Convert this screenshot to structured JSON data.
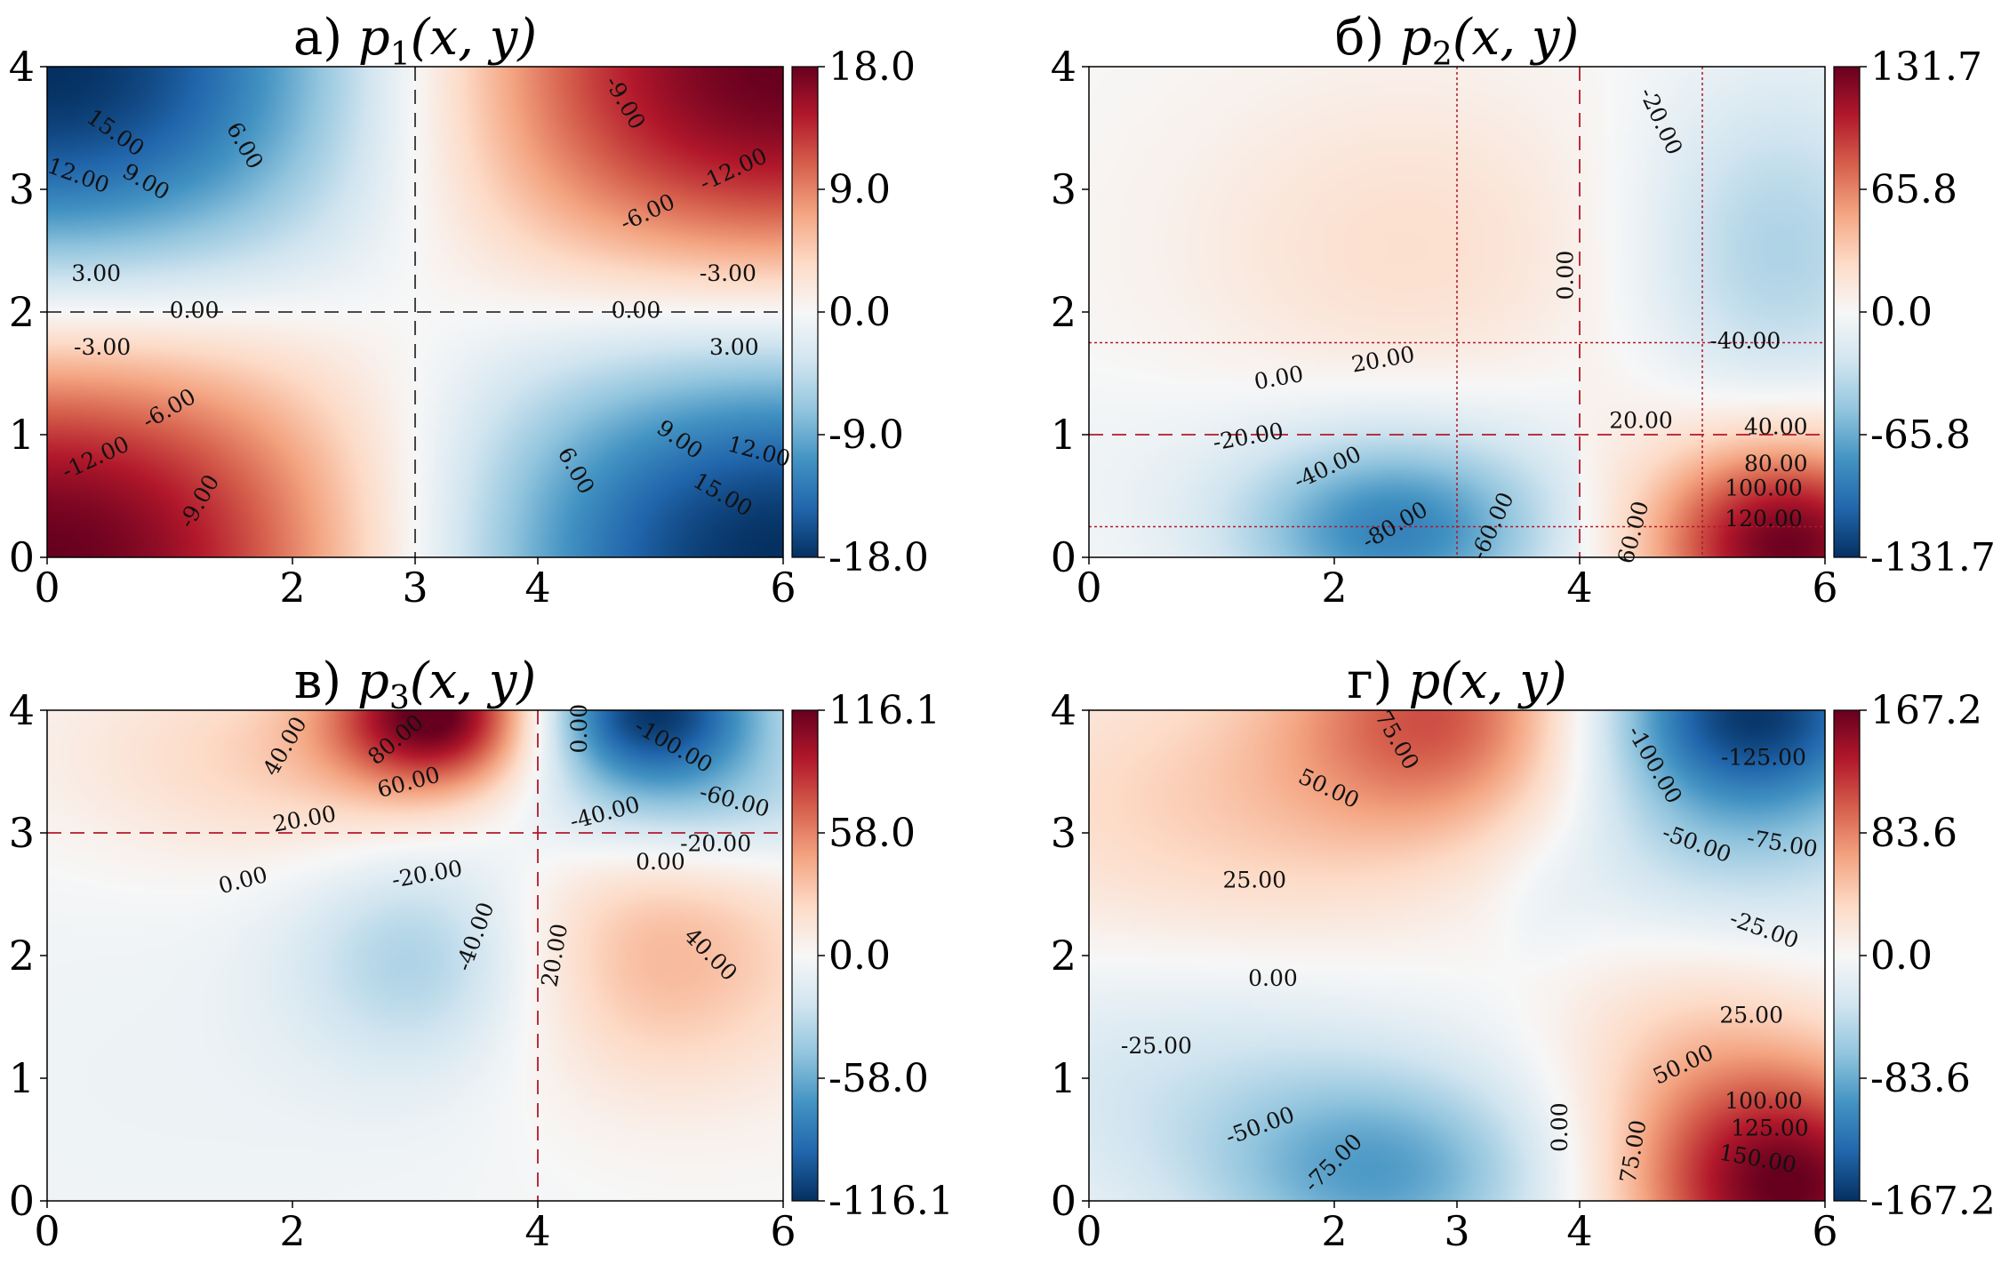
{
  "chart_data": [
    {
      "type": "heatmap",
      "prefix": "а)",
      "func": "p",
      "sub": "1",
      "args": "(x, y)",
      "xlim": [
        0,
        6
      ],
      "ylim": [
        0,
        4
      ],
      "xticks": [
        0,
        2,
        3,
        4,
        6
      ],
      "yticks": [
        0,
        1,
        2,
        3,
        4
      ],
      "colorbar": {
        "min": -18.0,
        "max": 18.0,
        "ticks": [
          "18.0",
          "9.0",
          "0.0",
          "-9.0",
          "-18.0"
        ]
      },
      "colormap": "RdBu_r",
      "dashed_lines": [
        {
          "orient": "v",
          "at": 3
        },
        {
          "orient": "h",
          "at": 2
        }
      ],
      "dotted_lines": [],
      "contour_labels": [
        {
          "text": "15.00",
          "x": 0.55,
          "y": 3.45,
          "angle": -35
        },
        {
          "text": "12.00",
          "x": 0.25,
          "y": 3.1,
          "angle": -20
        },
        {
          "text": "9.00",
          "x": 0.8,
          "y": 3.05,
          "angle": -30
        },
        {
          "text": "6.00",
          "x": 1.6,
          "y": 3.35,
          "angle": -60
        },
        {
          "text": "3.00",
          "x": 0.4,
          "y": 2.3,
          "angle": 0
        },
        {
          "text": "0.00",
          "x": 1.2,
          "y": 2.0,
          "angle": 0
        },
        {
          "text": "0.00",
          "x": 4.8,
          "y": 2.0,
          "angle": 0
        },
        {
          "text": "-9.00",
          "x": 4.7,
          "y": 3.7,
          "angle": -60
        },
        {
          "text": "-12.00",
          "x": 5.6,
          "y": 3.15,
          "angle": 25
        },
        {
          "text": "-6.00",
          "x": 4.9,
          "y": 2.8,
          "angle": 25
        },
        {
          "text": "-3.00",
          "x": 5.55,
          "y": 2.3,
          "angle": 0
        },
        {
          "text": "-3.00",
          "x": 0.45,
          "y": 1.7,
          "angle": 0
        },
        {
          "text": "-6.00",
          "x": 1.0,
          "y": 1.2,
          "angle": 30
        },
        {
          "text": "-12.00",
          "x": 0.4,
          "y": 0.8,
          "angle": 25
        },
        {
          "text": "-9.00",
          "x": 1.25,
          "y": 0.45,
          "angle": 60
        },
        {
          "text": "3.00",
          "x": 5.6,
          "y": 1.7,
          "angle": 0
        },
        {
          "text": "6.00",
          "x": 4.3,
          "y": 0.7,
          "angle": -60
        },
        {
          "text": "9.00",
          "x": 5.15,
          "y": 0.95,
          "angle": -35
        },
        {
          "text": "12.00",
          "x": 5.8,
          "y": 0.85,
          "angle": -15
        },
        {
          "text": "15.00",
          "x": 5.5,
          "y": 0.5,
          "angle": -30
        }
      ]
    },
    {
      "type": "heatmap",
      "prefix": "б)",
      "func": "p",
      "sub": "2",
      "args": "(x, y)",
      "xlim": [
        0,
        6
      ],
      "ylim": [
        0,
        4
      ],
      "xticks": [
        0,
        2,
        4,
        6
      ],
      "yticks": [
        0,
        1,
        2,
        3,
        4
      ],
      "colorbar": {
        "min": -131.7,
        "max": 131.7,
        "ticks": [
          "131.7",
          "65.8",
          "0.0",
          "-65.8",
          "-131.7"
        ]
      },
      "colormap": "RdBu_r",
      "dashed_lines": [
        {
          "orient": "v",
          "at": 4
        },
        {
          "orient": "h",
          "at": 1
        }
      ],
      "dotted_lines": [
        {
          "orient": "v",
          "at": 3
        },
        {
          "orient": "v",
          "at": 5
        },
        {
          "orient": "h",
          "at": 1.75
        },
        {
          "orient": "h",
          "at": 0.25
        }
      ],
      "contour_labels": [
        {
          "text": "-20.00",
          "x": 4.65,
          "y": 3.55,
          "angle": -65
        },
        {
          "text": "0.00",
          "x": 3.9,
          "y": 2.3,
          "angle": 90
        },
        {
          "text": "-40.00",
          "x": 5.35,
          "y": 1.75,
          "angle": 0
        },
        {
          "text": "20.00",
          "x": 2.4,
          "y": 1.6,
          "angle": 10
        },
        {
          "text": "0.00",
          "x": 1.55,
          "y": 1.45,
          "angle": 10
        },
        {
          "text": "20.00",
          "x": 4.5,
          "y": 1.1,
          "angle": 0
        },
        {
          "text": "40.00",
          "x": 5.6,
          "y": 1.05,
          "angle": 0
        },
        {
          "text": "-20.00",
          "x": 1.3,
          "y": 0.97,
          "angle": 10
        },
        {
          "text": "-40.00",
          "x": 1.95,
          "y": 0.72,
          "angle": 25
        },
        {
          "text": "80.00",
          "x": 5.6,
          "y": 0.75,
          "angle": 0
        },
        {
          "text": "100.00",
          "x": 5.5,
          "y": 0.55,
          "angle": 0
        },
        {
          "text": "120.00",
          "x": 5.5,
          "y": 0.3,
          "angle": 0
        },
        {
          "text": "-80.00",
          "x": 2.5,
          "y": 0.25,
          "angle": 30
        },
        {
          "text": "-60.00",
          "x": 3.3,
          "y": 0.25,
          "angle": 65
        },
        {
          "text": "60.00",
          "x": 4.45,
          "y": 0.2,
          "angle": 75
        }
      ]
    },
    {
      "type": "heatmap",
      "prefix": "в)",
      "func": "p",
      "sub": "3",
      "args": "(x, y)",
      "xlim": [
        0,
        6
      ],
      "ylim": [
        0,
        4
      ],
      "xticks": [
        0,
        2,
        4,
        6
      ],
      "yticks": [
        0,
        1,
        2,
        3,
        4
      ],
      "colorbar": {
        "min": -116.1,
        "max": 116.1,
        "ticks": [
          "116.1",
          "58.0",
          "0.0",
          "-58.0",
          "-116.1"
        ]
      },
      "colormap": "RdBu_r",
      "dashed_lines": [
        {
          "orient": "v",
          "at": 4
        },
        {
          "orient": "h",
          "at": 3
        }
      ],
      "dotted_lines": [],
      "contour_labels": [
        {
          "text": "40.00",
          "x": 1.95,
          "y": 3.7,
          "angle": 60
        },
        {
          "text": "80.00",
          "x": 2.85,
          "y": 3.75,
          "angle": 40
        },
        {
          "text": "60.00",
          "x": 2.95,
          "y": 3.4,
          "angle": 15
        },
        {
          "text": "20.00",
          "x": 2.1,
          "y": 3.1,
          "angle": 10
        },
        {
          "text": "0.00",
          "x": 4.35,
          "y": 3.85,
          "angle": 90
        },
        {
          "text": "-100.00",
          "x": 5.1,
          "y": 3.7,
          "angle": -30
        },
        {
          "text": "-60.00",
          "x": 5.6,
          "y": 3.25,
          "angle": -15
        },
        {
          "text": "-40.00",
          "x": 4.55,
          "y": 3.15,
          "angle": 15
        },
        {
          "text": "-20.00",
          "x": 5.45,
          "y": 2.9,
          "angle": 0
        },
        {
          "text": "0.00",
          "x": 5.0,
          "y": 2.75,
          "angle": 0
        },
        {
          "text": "0.00",
          "x": 1.6,
          "y": 2.6,
          "angle": 15
        },
        {
          "text": "-20.00",
          "x": 3.1,
          "y": 2.65,
          "angle": 10
        },
        {
          "text": "-40.00",
          "x": 3.5,
          "y": 2.15,
          "angle": 70
        },
        {
          "text": "20.00",
          "x": 4.15,
          "y": 2.0,
          "angle": 80
        },
        {
          "text": "40.00",
          "x": 5.4,
          "y": 2.0,
          "angle": -45
        }
      ]
    },
    {
      "type": "heatmap",
      "prefix": "г)",
      "func": "p",
      "sub": "",
      "args": "(x, y)",
      "xlim": [
        0,
        6
      ],
      "ylim": [
        0,
        4
      ],
      "xticks": [
        0,
        2,
        3,
        4,
        6
      ],
      "yticks": [
        0,
        1,
        2,
        3,
        4
      ],
      "colorbar": {
        "min": -167.2,
        "max": 167.2,
        "ticks": [
          "167.2",
          "83.6",
          "0.0",
          "-83.6",
          "-167.2"
        ]
      },
      "colormap": "RdBu_r",
      "dashed_lines": [],
      "dotted_lines": [],
      "contour_labels": [
        {
          "text": "75.00",
          "x": 2.5,
          "y": 3.75,
          "angle": -60
        },
        {
          "text": "50.00",
          "x": 1.95,
          "y": 3.35,
          "angle": -25
        },
        {
          "text": "25.00",
          "x": 1.35,
          "y": 2.6,
          "angle": 0
        },
        {
          "text": "0.00",
          "x": 1.5,
          "y": 1.8,
          "angle": 0
        },
        {
          "text": "-25.00",
          "x": 0.55,
          "y": 1.25,
          "angle": 0
        },
        {
          "text": "-50.00",
          "x": 1.4,
          "y": 0.6,
          "angle": 20
        },
        {
          "text": "-75.00",
          "x": 2.0,
          "y": 0.3,
          "angle": 45
        },
        {
          "text": "0.00",
          "x": 3.85,
          "y": 0.6,
          "angle": 90
        },
        {
          "text": "-100.00",
          "x": 4.6,
          "y": 3.55,
          "angle": -60
        },
        {
          "text": "-125.00",
          "x": 5.5,
          "y": 3.6,
          "angle": 0
        },
        {
          "text": "-50.00",
          "x": 4.95,
          "y": 2.9,
          "angle": -20
        },
        {
          "text": "-75.00",
          "x": 5.65,
          "y": 2.9,
          "angle": -10
        },
        {
          "text": "-25.00",
          "x": 5.5,
          "y": 2.2,
          "angle": -20
        },
        {
          "text": "25.00",
          "x": 5.4,
          "y": 1.5,
          "angle": 0
        },
        {
          "text": "50.00",
          "x": 4.85,
          "y": 1.1,
          "angle": 25
        },
        {
          "text": "100.00",
          "x": 5.5,
          "y": 0.8,
          "angle": 0
        },
        {
          "text": "125.00",
          "x": 5.55,
          "y": 0.58,
          "angle": 0
        },
        {
          "text": "150.00",
          "x": 5.45,
          "y": 0.33,
          "angle": -10
        },
        {
          "text": "75.00",
          "x": 4.45,
          "y": 0.4,
          "angle": 80
        }
      ]
    }
  ]
}
